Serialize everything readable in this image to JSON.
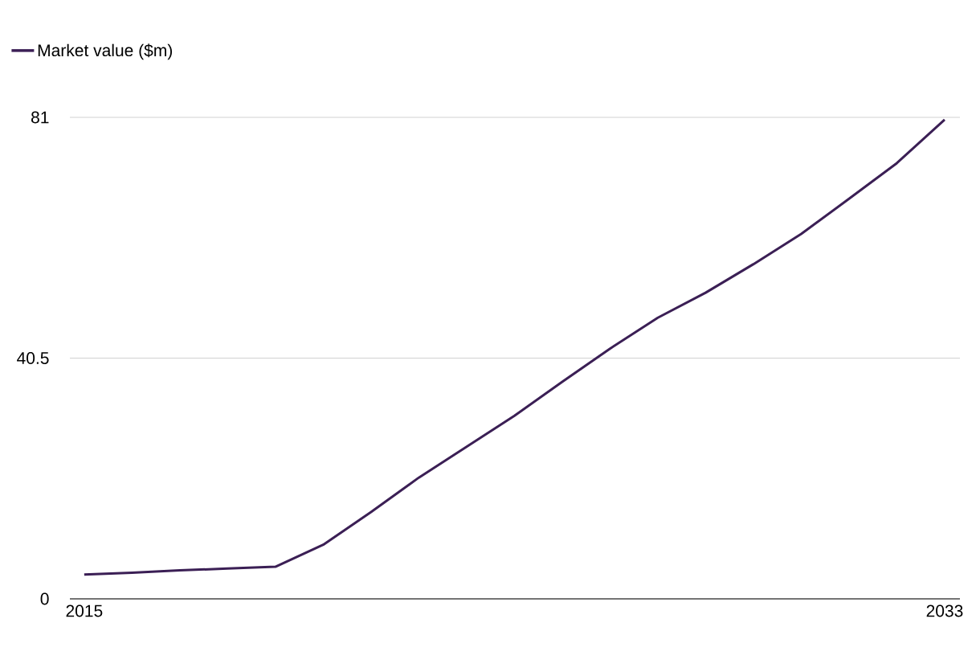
{
  "chart_data": {
    "type": "line",
    "x": [
      2015,
      2016,
      2017,
      2018,
      2019,
      2020,
      2021,
      2022,
      2023,
      2024,
      2025,
      2026,
      2027,
      2028,
      2029,
      2030,
      2031,
      2032,
      2033
    ],
    "series": [
      {
        "name": "Market value ($m)",
        "color": "#3b1f55",
        "values": [
          4.1,
          4.4,
          4.8,
          5.1,
          5.4,
          9.1,
          14.6,
          20.4,
          25.6,
          30.8,
          36.5,
          42.1,
          47.3,
          51.5,
          56.3,
          61.4,
          67.3,
          73.3,
          80.6
        ]
      }
    ],
    "xlim": [
      2014.7,
      2033.32
    ],
    "ylim": [
      0,
      81
    ],
    "xticks": [
      2015,
      2033
    ],
    "yticks": [
      0,
      40.5,
      81
    ],
    "grid": "y",
    "legend": "top left",
    "marker": "none",
    "line_style": "solid"
  }
}
